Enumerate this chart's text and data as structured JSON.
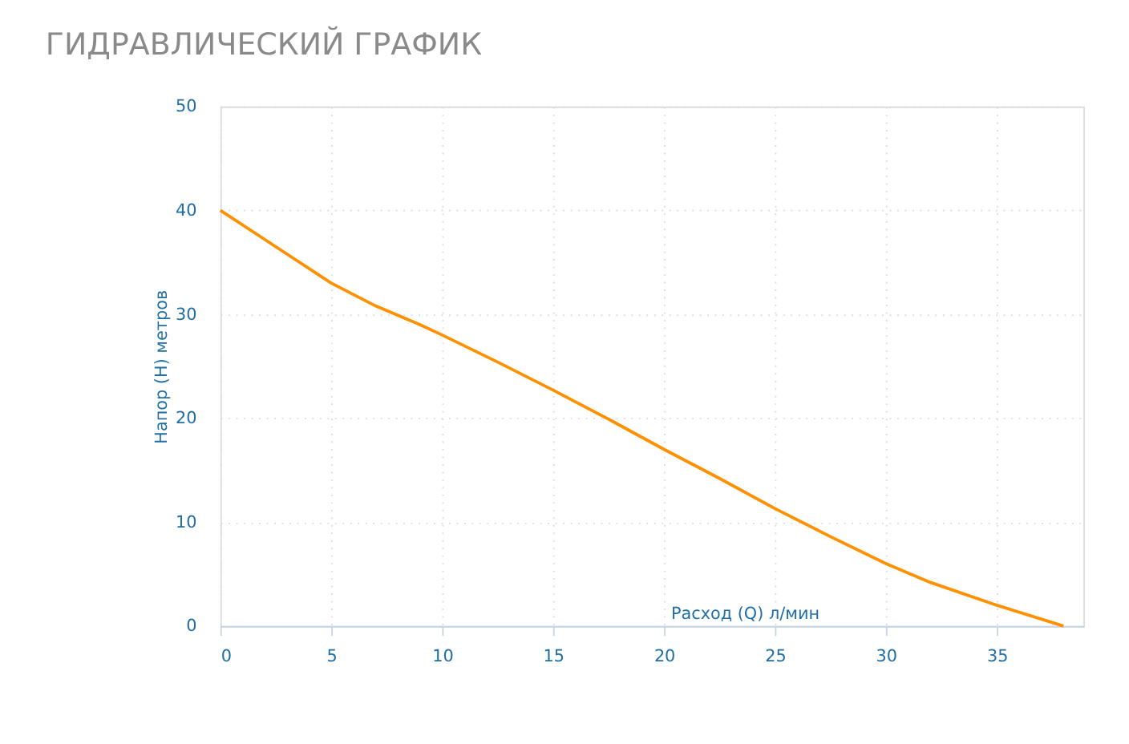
{
  "chart_data": {
    "type": "line",
    "title": "ГИДРАВЛИЧЕСКИЙ ГРАФИК",
    "xlabel": "Расход (Q) л/мин",
    "ylabel": "Напор (H) метров",
    "x": [
      0,
      2.5,
      5,
      7,
      9,
      10,
      12.5,
      15,
      17.5,
      20,
      22.5,
      25,
      27.5,
      30,
      32,
      35,
      38
    ],
    "series": [
      {
        "color": "#ff9000",
        "values": [
          40,
          36.5,
          33,
          30.8,
          29,
          28,
          25.4,
          22.7,
          19.9,
          17,
          14.2,
          11.3,
          8.6,
          6,
          4.2,
          2,
          0
        ]
      }
    ],
    "xlim": [
      0,
      38.9
    ],
    "xticks": [
      0,
      5,
      10,
      15,
      20,
      25,
      30,
      35
    ],
    "ylim": [
      0,
      50
    ],
    "yticks": [
      0,
      10,
      20,
      30,
      40,
      50
    ],
    "grid": true,
    "marker": "none",
    "line_style": "solid"
  }
}
